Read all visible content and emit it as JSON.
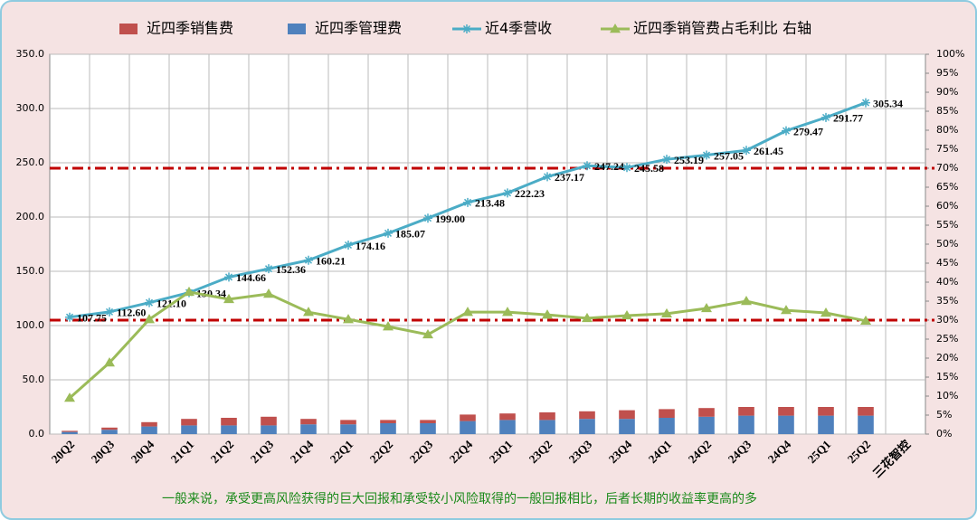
{
  "chart_data": {
    "type": "bar",
    "stacked": true,
    "categories": [
      "20Q2",
      "20Q3",
      "20Q4",
      "21Q1",
      "21Q2",
      "21Q3",
      "21Q4",
      "22Q1",
      "22Q2",
      "22Q3",
      "22Q4",
      "23Q1",
      "23Q2",
      "23Q3",
      "23Q4",
      "24Q1",
      "24Q2",
      "24Q3",
      "24Q4",
      "25Q1",
      "25Q2",
      "三花智控"
    ],
    "series": [
      {
        "name": "近四季销售费",
        "type": "bar",
        "color": "#c0504d",
        "values": [
          1,
          2,
          4,
          6,
          7,
          8,
          5,
          4,
          3,
          3,
          6,
          6,
          7,
          7,
          8,
          8,
          8,
          8,
          8,
          8,
          8,
          null
        ]
      },
      {
        "name": "近四季管理费",
        "type": "bar",
        "color": "#4f81bd",
        "values": [
          2,
          4,
          7,
          8,
          8,
          8,
          9,
          9,
          10,
          10,
          12,
          13,
          13,
          14,
          14,
          15,
          16,
          17,
          17,
          17,
          17,
          null
        ]
      },
      {
        "name": "近4季营收",
        "type": "line",
        "marker": "star",
        "color": "#4bacc6",
        "values": [
          107.75,
          112.6,
          121.1,
          130.34,
          144.66,
          152.36,
          160.21,
          174.16,
          185.07,
          199,
          213.48,
          222.23,
          237.17,
          247.24,
          245.58,
          253.19,
          257.05,
          261.45,
          279.47,
          291.77,
          305.34,
          null
        ],
        "value_labels": [
          "107.75",
          "112.60",
          "121.10",
          "130.34",
          "144.66",
          "152.36",
          "160.21",
          "174.16",
          "185.07",
          "199.00",
          "213.48",
          "222.23",
          "237.17",
          "247.24",
          "245.58",
          "253.19",
          "257.05",
          "261.45",
          "279.47",
          "291.77",
          "305.34",
          null
        ]
      },
      {
        "name": "近四季销管费占毛利比  右轴",
        "type": "line",
        "marker": "triangle",
        "axis": "y2",
        "color": "#9bbb59",
        "values": [
          9.5,
          18.8,
          30.2,
          37.4,
          35.5,
          36.9,
          32.1,
          30.2,
          28.3,
          26.2,
          32.1,
          32.1,
          31.4,
          30.5,
          31.2,
          31.7,
          33.1,
          35,
          32.6,
          31.9,
          29.8,
          null
        ]
      }
    ],
    "reference_lines_y2": [
      70,
      30
    ],
    "reference_color": "#c00000",
    "ylim": [
      0,
      350
    ],
    "yticks": [
      {
        "value": 0,
        "label": "0.0"
      },
      {
        "value": 50,
        "label": "50.0"
      },
      {
        "value": 100,
        "label": "100.0"
      },
      {
        "value": 150,
        "label": "150.0"
      },
      {
        "value": 200,
        "label": "200.0"
      },
      {
        "value": 250,
        "label": "250.0"
      },
      {
        "value": 300,
        "label": "300.0"
      },
      {
        "value": 350,
        "label": "350.0"
      }
    ],
    "y2lim": [
      0,
      100
    ],
    "y2ticks": [
      {
        "value": 0,
        "label": "0%"
      },
      {
        "value": 5,
        "label": "5%"
      },
      {
        "value": 10,
        "label": "10%"
      },
      {
        "value": 15,
        "label": "15%"
      },
      {
        "value": 20,
        "label": "20%"
      },
      {
        "value": 25,
        "label": "25%"
      },
      {
        "value": 30,
        "label": "30%"
      },
      {
        "value": 35,
        "label": "35%"
      },
      {
        "value": 40,
        "label": "40%"
      },
      {
        "value": 45,
        "label": "45%"
      },
      {
        "value": 50,
        "label": "50%"
      },
      {
        "value": 55,
        "label": "55%"
      },
      {
        "value": 60,
        "label": "60%"
      },
      {
        "value": 65,
        "label": "65%"
      },
      {
        "value": 70,
        "label": "70%"
      },
      {
        "value": 75,
        "label": "75%"
      },
      {
        "value": 80,
        "label": "80%"
      },
      {
        "value": 85,
        "label": "85%"
      },
      {
        "value": 90,
        "label": "90%"
      },
      {
        "value": 95,
        "label": "95%"
      },
      {
        "value": 100,
        "label": "100%"
      }
    ],
    "grid": true,
    "legend": "top",
    "annotation": "一般来说，承受更高风险获得的巨大回报和承受较小风险取得的一般回报相比，后者长期的收益率更高的多"
  }
}
